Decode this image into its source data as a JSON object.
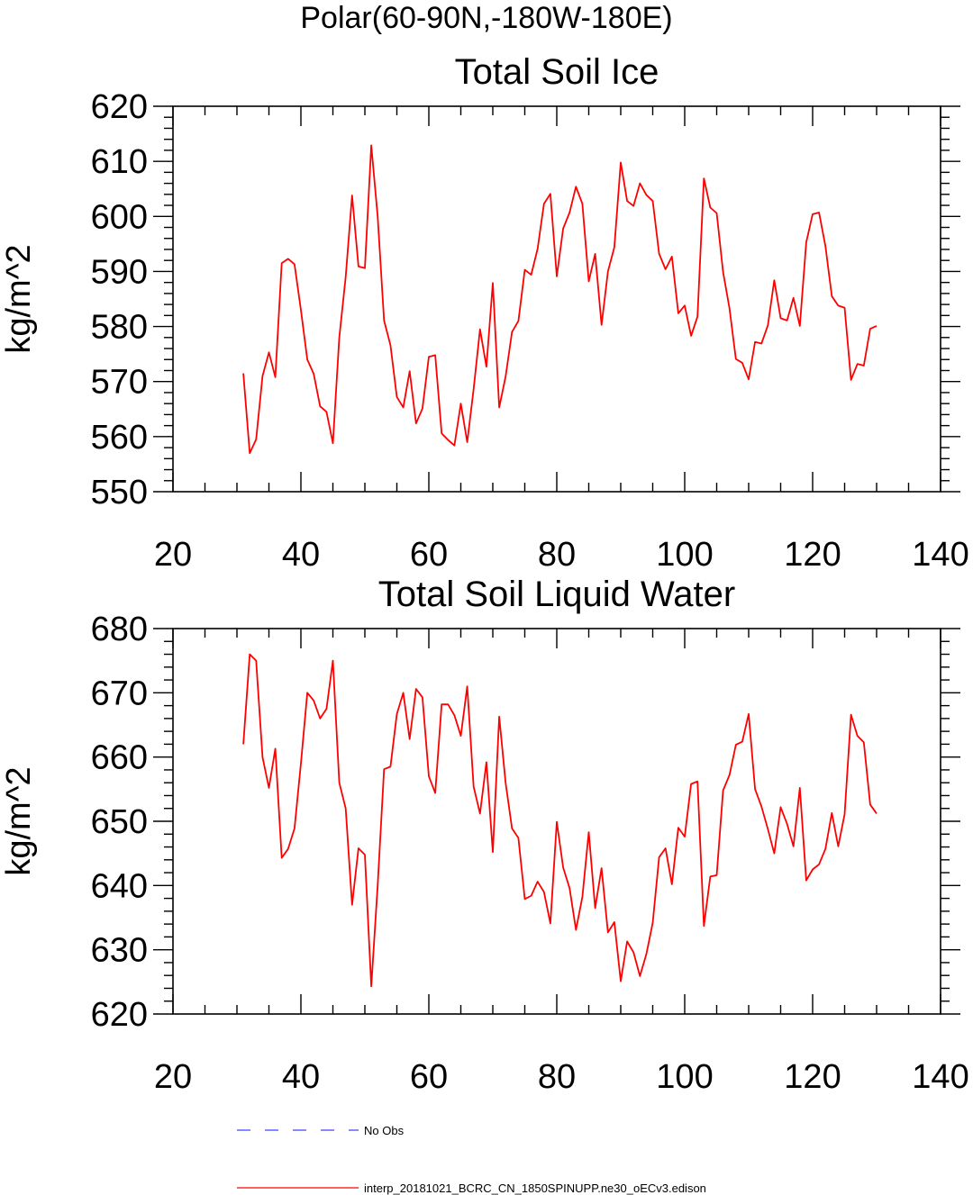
{
  "figure": {
    "suptitle": "Polar(60-90N,-180W-180E)",
    "legend": [
      {
        "label": "No Obs",
        "color": "#4040ff",
        "dash": "dashed"
      },
      {
        "label": "interp_20181021_BCRC_CN_1850SPINUPP.ne30_oECv3.edison",
        "color": "#ff0000",
        "dash": "solid"
      }
    ]
  },
  "chart_data": [
    {
      "type": "line",
      "title": "Total Soil Ice",
      "xlabel": "",
      "ylabel": "kg/m^2",
      "xlim": [
        20,
        140
      ],
      "ylim": [
        550,
        620
      ],
      "xticks": [
        20,
        40,
        60,
        80,
        100,
        120,
        140
      ],
      "yticks": [
        550,
        560,
        570,
        580,
        590,
        600,
        610,
        620
      ],
      "grid": false,
      "x_start": 31,
      "x_step": 1,
      "series": [
        {
          "color": "#ff0000",
          "values": [
            571.5,
            557,
            559.5,
            571,
            575.3,
            570.8,
            591.5,
            592.3,
            591.3,
            583,
            574,
            571.4,
            565.5,
            564.5,
            558.8,
            578,
            589,
            603.8,
            590.9,
            590.6,
            612.9,
            600,
            581.1,
            576.6,
            567.2,
            565.3,
            571.9,
            562.4,
            565.1,
            574.5,
            574.8,
            560.6,
            559.4,
            558.4,
            566,
            559,
            568.6,
            579.5,
            572.7,
            587.9,
            565.3,
            570.9,
            579,
            581,
            590.3,
            589.4,
            594.1,
            602.3,
            604.1,
            589.1,
            597.8,
            600.7,
            605.4,
            602.3,
            588.2,
            593.2,
            580.3,
            590,
            594.4,
            609.8,
            602.8,
            601.9,
            606,
            603.9,
            602.8,
            593.2,
            590.4,
            592.7,
            582.4,
            583.8,
            578.3,
            581.8,
            606.9,
            601.6,
            600.6,
            589.9,
            583.3,
            574.1,
            573.4,
            570.4,
            577.2,
            576.9,
            580.2,
            588.4,
            581.5,
            581.1,
            585.2,
            580.1,
            595.3,
            600.4,
            600.7,
            594.6,
            585.5,
            583.8,
            583.4,
            570.3,
            573.2,
            572.9,
            579.6,
            580.1
          ]
        }
      ]
    },
    {
      "type": "line",
      "title": "Total Soil Liquid Water",
      "xlabel": "",
      "ylabel": "kg/m^2",
      "xlim": [
        20,
        140
      ],
      "ylim": [
        620,
        680
      ],
      "xticks": [
        20,
        40,
        60,
        80,
        100,
        120,
        140
      ],
      "yticks": [
        620,
        630,
        640,
        650,
        660,
        670,
        680
      ],
      "grid": false,
      "x_start": 31,
      "x_step": 1,
      "series": [
        {
          "color": "#ff0000",
          "values": [
            662,
            676,
            675,
            660,
            655.2,
            661.3,
            644.3,
            645.7,
            648.9,
            659,
            670,
            668.8,
            666,
            667.5,
            675,
            656,
            652,
            637,
            645.8,
            644.8,
            624.3,
            640,
            658.1,
            658.5,
            666.7,
            670,
            662.8,
            670.6,
            669.3,
            657,
            654.4,
            668.2,
            668.2,
            666.5,
            663.3,
            671,
            655.4,
            651.2,
            659.2,
            645.2,
            666.3,
            656,
            648.9,
            647.4,
            637.9,
            638.4,
            640.6,
            639,
            634.1,
            649.9,
            642.8,
            639.6,
            633.1,
            638.2,
            648.3,
            636.5,
            642.7,
            632.7,
            634.3,
            625.1,
            631.3,
            629.6,
            625.9,
            629.3,
            634.2,
            644.4,
            645.8,
            640.2,
            649,
            647.6,
            655.8,
            656.2,
            633.7,
            641.4,
            641.6,
            654.8,
            657.2,
            661.9,
            662.4,
            666.7,
            655,
            652.3,
            648.8,
            645,
            652.2,
            649.6,
            646.1,
            655.2,
            640.8,
            642.5,
            643.3,
            645.7,
            651.3,
            646.1,
            651.1,
            666.6,
            663.3,
            662.3,
            652.6,
            651.2
          ]
        }
      ]
    }
  ]
}
